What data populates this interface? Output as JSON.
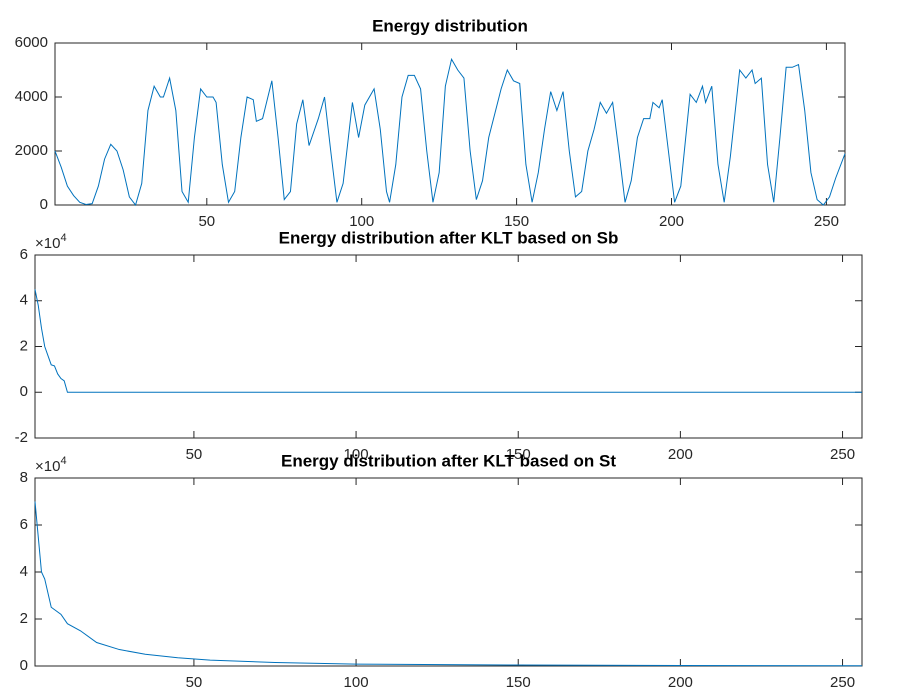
{
  "chart_data": [
    {
      "type": "line",
      "title": "Energy distribution",
      "color": "#0072bd",
      "x": [
        1,
        3,
        5,
        7,
        9,
        11,
        13,
        15,
        17,
        19,
        21,
        23,
        25,
        27,
        29,
        31,
        33,
        35,
        36,
        38,
        40,
        42,
        44,
        46,
        48,
        50,
        52,
        53,
        55,
        57,
        59,
        61,
        63,
        65,
        66,
        68,
        71,
        73,
        75,
        77,
        79,
        81,
        83,
        86,
        88,
        90,
        92,
        94,
        97,
        99,
        101,
        104,
        106,
        108,
        109,
        111,
        113,
        115,
        117,
        119,
        121,
        123,
        125,
        127,
        129,
        131,
        133,
        135,
        137,
        139,
        141,
        143,
        145,
        147,
        149,
        151,
        153,
        155,
        157,
        159,
        161,
        163,
        165,
        167,
        169,
        171,
        173,
        175,
        177,
        179,
        181,
        183,
        185,
        187,
        189,
        191,
        193,
        194,
        196,
        197,
        199,
        201,
        203,
        206,
        208,
        210,
        211,
        213,
        215,
        217,
        219,
        222,
        224,
        226,
        227,
        229,
        231,
        233,
        235,
        237,
        239,
        241,
        243,
        245,
        247,
        249,
        251,
        253,
        256
      ],
      "values": [
        2000,
        1400,
        700,
        350,
        100,
        20,
        50,
        700,
        1700,
        2250,
        2000,
        1300,
        300,
        0,
        800,
        3500,
        4400,
        4000,
        4000,
        4700,
        3500,
        500,
        100,
        2500,
        4300,
        4000,
        4000,
        3800,
        1500,
        100,
        500,
        2500,
        4000,
        3900,
        3100,
        3200,
        4600,
        2500,
        200,
        500,
        3000,
        3900,
        2200,
        3200,
        4000,
        2000,
        100,
        800,
        3800,
        2500,
        3700,
        4300,
        2800,
        500,
        100,
        1500,
        4000,
        4800,
        4800,
        4300,
        2000,
        100,
        1200,
        4400,
        5400,
        5000,
        4700,
        2000,
        200,
        900,
        2500,
        3400,
        4300,
        5000,
        4600,
        4500,
        1500,
        100,
        1200,
        2800,
        4200,
        3500,
        4200,
        2000,
        300,
        500,
        2000,
        2800,
        3800,
        3400,
        3800,
        2000,
        100,
        900,
        2500,
        3200,
        3200,
        3800,
        3600,
        3900,
        2000,
        100,
        700,
        4100,
        3800,
        4400,
        3800,
        4400,
        1500,
        100,
        1800,
        5000,
        4700,
        5000,
        4500,
        4700,
        1500,
        100,
        2500,
        5100,
        5100,
        5200,
        3500,
        1200,
        200,
        0,
        300,
        1000,
        1900
      ],
      "xlim": [
        1,
        256
      ],
      "xticks": [
        50,
        100,
        150,
        200,
        250
      ],
      "ylim": [
        0,
        6000
      ],
      "yticks": [
        0,
        2000,
        4000,
        6000
      ]
    },
    {
      "type": "line",
      "title": "Energy distribution after KLT based on Sb",
      "color": "#0072bd",
      "x": [
        1,
        2,
        3,
        4,
        5,
        6,
        7,
        8,
        9,
        10,
        11,
        256
      ],
      "values": [
        45000,
        38000,
        28000,
        20000,
        16000,
        12000,
        11500,
        8000,
        6000,
        5000,
        0,
        0
      ],
      "xlim": [
        1,
        256
      ],
      "xticks": [
        50,
        100,
        150,
        200,
        250
      ],
      "ylim": [
        -20000,
        60000
      ],
      "yticks": [
        {
          "value": -20000,
          "label": "-2"
        },
        {
          "value": 0,
          "label": "0"
        },
        {
          "value": 20000,
          "label": "2"
        },
        {
          "value": 40000,
          "label": "4"
        },
        {
          "value": 60000,
          "label": "6"
        }
      ],
      "y_exponent": {
        "base": "×10",
        "power": "4"
      }
    },
    {
      "type": "line",
      "title": "Energy distribution after KLT based on St",
      "color": "#0072bd",
      "x": [
        1,
        3,
        4,
        6,
        9,
        11,
        15,
        20,
        27,
        35,
        45,
        55,
        75,
        100,
        150,
        200,
        256
      ],
      "values": [
        70000,
        40000,
        37000,
        25000,
        22000,
        18000,
        15000,
        10000,
        7000,
        5000,
        3500,
        2500,
        1500,
        800,
        400,
        200,
        100
      ],
      "xlim": [
        1,
        256
      ],
      "xticks": [
        50,
        100,
        150,
        200,
        250
      ],
      "ylim": [
        0,
        80000
      ],
      "yticks": [
        {
          "value": 0,
          "label": "0"
        },
        {
          "value": 20000,
          "label": "2"
        },
        {
          "value": 40000,
          "label": "4"
        },
        {
          "value": 60000,
          "label": "6"
        },
        {
          "value": 80000,
          "label": "8"
        }
      ],
      "y_exponent": {
        "base": "×10",
        "power": "4"
      }
    }
  ]
}
